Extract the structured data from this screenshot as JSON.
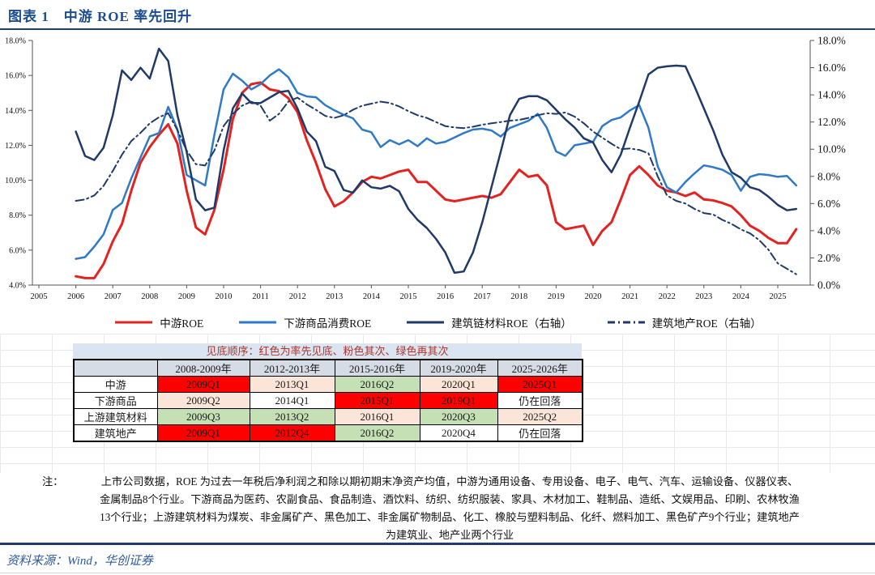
{
  "header": {
    "title": "图表 1　中游 ROE 率先回升"
  },
  "chart_data": {
    "type": "line",
    "x_start": 2006.0,
    "x_step": 0.25,
    "x_ticks": [
      2005,
      2006,
      2007,
      2008,
      2009,
      2010,
      2011,
      2012,
      2013,
      2014,
      2015,
      2016,
      2017,
      2018,
      2019,
      2020,
      2021,
      2022,
      2023,
      2024,
      2025
    ],
    "left_axis": {
      "min": 4,
      "max": 18,
      "step": 2,
      "tick_labels": [
        "18.0%",
        "16.0%",
        "14.0%",
        "12.0%",
        "10.0%",
        "8.0%",
        "6.0%",
        "4.0%"
      ]
    },
    "right_axis": {
      "min": 0,
      "max": 18,
      "step": 2,
      "tick_labels": [
        "18.0%",
        "16.0%",
        "14.0%",
        "12.0%",
        "10.0%",
        "8.0%",
        "6.0%",
        "4.0%",
        "2.0%",
        "0.0%"
      ]
    },
    "series": [
      {
        "name": "中游ROE",
        "axis": "left",
        "style": "solid",
        "color": "#e22320",
        "values": [
          4.5,
          4.4,
          4.4,
          5.2,
          6.5,
          7.5,
          9.4,
          11.0,
          11.9,
          12.6,
          13.2,
          12.1,
          9.4,
          7.3,
          6.9,
          8.3,
          10.6,
          13.5,
          15.0,
          15.5,
          15.6,
          15.2,
          15.1,
          14.7,
          13.9,
          12.3,
          11.0,
          9.5,
          8.5,
          8.8,
          9.3,
          9.9,
          10.2,
          10.1,
          10.3,
          10.5,
          10.6,
          9.9,
          9.9,
          9.4,
          8.9,
          8.8,
          8.9,
          9.0,
          9.1,
          9.0,
          9.2,
          9.9,
          10.6,
          10.2,
          10.3,
          9.7,
          7.6,
          7.2,
          7.3,
          7.4,
          6.3,
          7.1,
          7.6,
          8.9,
          10.3,
          10.8,
          10.3,
          9.7,
          9.4,
          9.3,
          9.1,
          9.3,
          8.9,
          8.85,
          8.7,
          8.5,
          8.0,
          7.4,
          7.1,
          6.7,
          6.4,
          6.4,
          7.2
        ]
      },
      {
        "name": "下游商品消费ROE",
        "axis": "left",
        "style": "solid",
        "color": "#2e79c8",
        "values": [
          5.5,
          5.6,
          6.2,
          6.9,
          8.3,
          8.7,
          10.1,
          11.3,
          12.5,
          12.7,
          14.2,
          12.9,
          10.3,
          10.0,
          9.7,
          12.6,
          15.2,
          16.1,
          15.7,
          15.2,
          15.5,
          16.0,
          16.35,
          15.9,
          15.0,
          14.8,
          14.75,
          14.3,
          14.0,
          13.75,
          13.55,
          12.9,
          12.75,
          11.9,
          12.3,
          12.05,
          12.3,
          11.95,
          12.4,
          12.1,
          12.2,
          12.45,
          12.7,
          12.9,
          12.95,
          12.85,
          12.5,
          13.0,
          13.2,
          13.4,
          13.8,
          13.0,
          11.65,
          11.4,
          12.0,
          12.1,
          12.2,
          13.1,
          13.45,
          13.6,
          14.0,
          14.3,
          13.0,
          10.8,
          9.6,
          9.3,
          9.9,
          10.4,
          10.85,
          10.75,
          10.6,
          10.3,
          9.4,
          10.2,
          10.35,
          10.3,
          10.2,
          10.25,
          9.7
        ]
      },
      {
        "name": "建筑链材料ROE（右轴）",
        "axis": "right",
        "style": "solid",
        "color": "#1f3a68",
        "values": [
          11.3,
          9.5,
          9.2,
          10.1,
          12.5,
          15.8,
          15.1,
          16.0,
          15.2,
          17.4,
          16.5,
          12.5,
          9.8,
          6.3,
          5.5,
          5.7,
          9.9,
          13.0,
          14.1,
          13.4,
          13.4,
          13.8,
          14.2,
          14.3,
          13.0,
          11.3,
          10.6,
          8.7,
          8.4,
          7.0,
          6.8,
          7.7,
          7.2,
          7.1,
          7.3,
          6.9,
          5.6,
          4.8,
          4.2,
          3.4,
          2.4,
          0.9,
          1.0,
          2.4,
          4.6,
          7.2,
          9.8,
          12.5,
          13.7,
          13.9,
          13.9,
          13.6,
          12.9,
          12.2,
          11.6,
          10.8,
          10.5,
          9.2,
          8.3,
          9.6,
          11.6,
          13.5,
          15.5,
          16.0,
          16.1,
          16.15,
          16.1,
          14.6,
          13.0,
          11.4,
          9.6,
          8.3,
          7.9,
          7.2,
          7.0,
          6.5,
          5.9,
          5.5,
          5.6
        ]
      },
      {
        "name": "建筑地产ROE（右轴）",
        "axis": "right",
        "style": "dashdot",
        "color": "#1f3a68",
        "values": [
          6.2,
          6.3,
          6.6,
          7.3,
          8.4,
          9.6,
          10.6,
          11.2,
          11.9,
          12.35,
          12.65,
          11.4,
          9.9,
          8.9,
          8.8,
          9.9,
          11.7,
          12.6,
          13.2,
          13.5,
          13.2,
          12.1,
          12.6,
          13.5,
          13.8,
          13.3,
          12.9,
          12.45,
          12.3,
          12.5,
          12.9,
          13.2,
          13.35,
          13.5,
          13.4,
          13.15,
          12.8,
          12.5,
          12.3,
          12.0,
          11.7,
          11.6,
          11.55,
          11.65,
          11.8,
          11.9,
          12.0,
          12.1,
          12.15,
          12.3,
          12.5,
          12.65,
          12.6,
          12.7,
          12.4,
          11.9,
          11.3,
          10.85,
          10.4,
          10.0,
          10.05,
          9.95,
          9.7,
          8.0,
          6.6,
          6.2,
          6.0,
          5.6,
          5.3,
          5.2,
          4.8,
          4.5,
          4.1,
          3.8,
          3.3,
          2.6,
          1.6,
          1.2,
          0.8
        ]
      }
    ]
  },
  "table": {
    "banner": "见底顺序：红色为率先见底、粉色其次、绿色再其次",
    "columns": [
      "",
      "2008-2009年",
      "2012-2013年",
      "2015-2016年",
      "2019-2020年",
      "2025-2026年"
    ],
    "rows": [
      {
        "label": "中游",
        "cells": [
          {
            "text": "2009Q1",
            "bg": "red"
          },
          {
            "text": "2013Q1",
            "bg": "pink"
          },
          {
            "text": "2016Q2",
            "bg": "green"
          },
          {
            "text": "2020Q1",
            "bg": "pink"
          },
          {
            "text": "2025Q1",
            "bg": "red"
          }
        ]
      },
      {
        "label": "下游商品",
        "cells": [
          {
            "text": "2009Q2",
            "bg": "pink"
          },
          {
            "text": "2014Q1",
            "bg": "white"
          },
          {
            "text": "2015Q1",
            "bg": "red"
          },
          {
            "text": "2019Q1",
            "bg": "red"
          },
          {
            "text": "仍在回落",
            "bg": "white"
          }
        ]
      },
      {
        "label": "上游建筑材料",
        "cells": [
          {
            "text": "2009Q3",
            "bg": "green"
          },
          {
            "text": "2013Q2",
            "bg": "green"
          },
          {
            "text": "2016Q1",
            "bg": "pink"
          },
          {
            "text": "2020Q3",
            "bg": "green"
          },
          {
            "text": "2025Q2",
            "bg": "pink"
          }
        ]
      },
      {
        "label": "建筑地产",
        "cells": [
          {
            "text": "2009Q1",
            "bg": "red"
          },
          {
            "text": "2012Q4",
            "bg": "red"
          },
          {
            "text": "2016Q2",
            "bg": "green"
          },
          {
            "text": "2020Q4",
            "bg": "white"
          },
          {
            "text": "仍在回落",
            "bg": "white"
          }
        ]
      }
    ],
    "colors": {
      "red": "#fe0000",
      "pink": "#fbe5d8",
      "green": "#c5e0b4",
      "white": "#ffffff",
      "red_cell_text": "#8f1209",
      "banner_bg": "#dbe5f2",
      "banner_text": "#b03226",
      "header_bg": "#d6dce5"
    }
  },
  "note": {
    "label": "注：",
    "lines": [
      "上市公司数据，ROE 为过去一年税后净利润之和除以期初期末净资产均值，中游为通用设备、专用设备、电子、电气、汽车、运输设备、仪器仪表、",
      "金属制品8个行业。下游商品为医药、农副食品、食品制造、酒饮料、纺织、纺织服装、家具、木材加工、鞋制品、造纸、文娱用品、印刷、农林牧渔",
      "13个行业；上游建筑材料为煤炭、非金属矿产、黑色加工、非金属矿物制品、化工、橡胶与塑料制品、化纤、燃料加工、黑色矿产9个行业；建筑地产",
      "为建筑业、地产业两个行业"
    ]
  },
  "source": {
    "text": "资料来源：Wind，华创证券"
  }
}
